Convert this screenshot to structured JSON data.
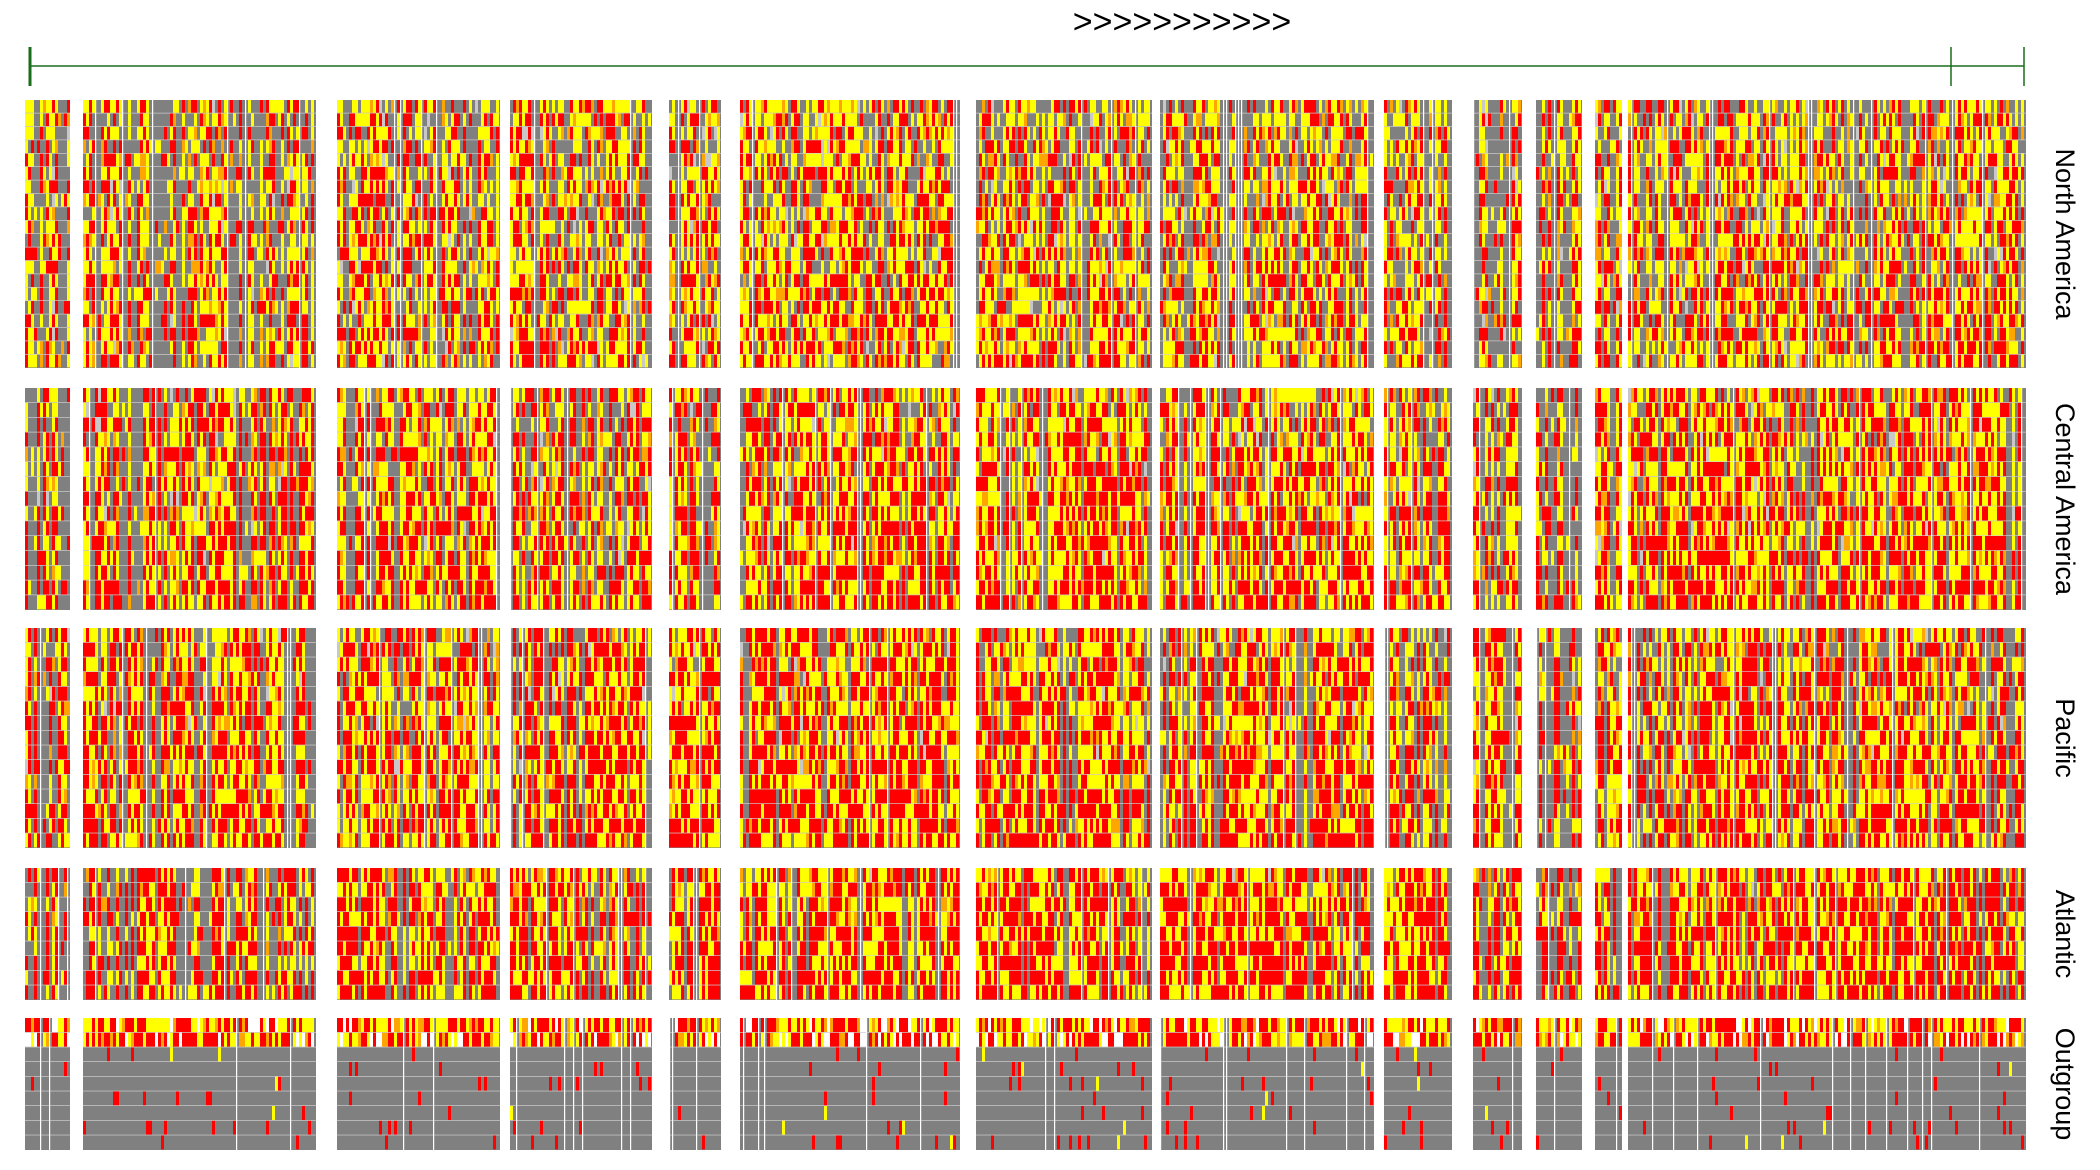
{
  "chart_data": {
    "type": "heatmap",
    "title": ">>>>>>>>>>>",
    "xlabel": "",
    "ylabel": "",
    "grid": false,
    "colors": {
      "category_1": "#808080",
      "category_2": "#ff0000",
      "category_3": "#ffff00",
      "category_4": "#ffa500",
      "missing": "#c8c8c8",
      "gene_track": "#1a6e1a"
    },
    "gene_track": {
      "orientation": ">>>>>>>>>>>",
      "markers": [
        "start",
        "internal",
        "end"
      ]
    },
    "populations": [
      {
        "name": "North America",
        "rows": 20
      },
      {
        "name": "Central America",
        "rows": 15
      },
      {
        "name": "Pacific",
        "rows": 15
      },
      {
        "name": "Atlantic",
        "rows": 9
      },
      {
        "name": "Outgroup",
        "rows": 9
      }
    ],
    "locus_blocks": 13
  }
}
